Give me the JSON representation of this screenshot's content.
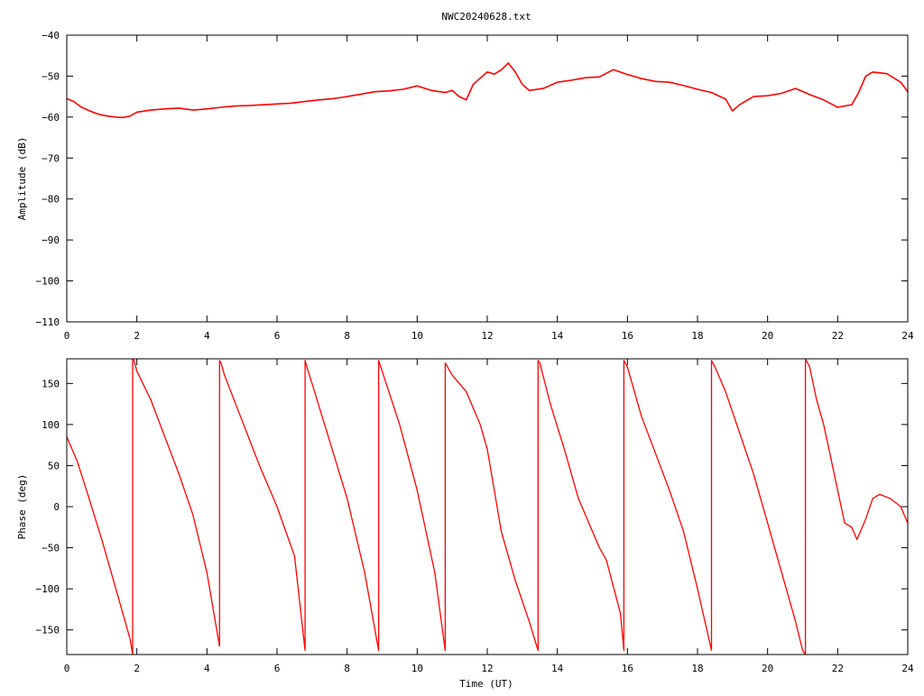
{
  "figure": {
    "title": "NWC20240628.txt",
    "xlabel": "Time (UT)",
    "series_color": "#ff0000"
  },
  "chart_data": [
    {
      "type": "line",
      "title": "NWC20240628.txt",
      "xlabel": "",
      "ylabel": "Amplitude (dB)",
      "xlim": [
        0,
        24
      ],
      "ylim": [
        -110,
        -40
      ],
      "xticks": [
        "0",
        "2",
        "4",
        "6",
        "8",
        "10",
        "12",
        "14",
        "16",
        "18",
        "20",
        "22",
        "24"
      ],
      "yticks": [
        "−40",
        "−50",
        "−60",
        "−70",
        "−80",
        "−90",
        "−100",
        "−110"
      ],
      "grid": false,
      "legend": "none",
      "series": [
        {
          "color": "#ff0000",
          "x": [
            0,
            0.2,
            0.4,
            0.6,
            0.8,
            1.0,
            1.2,
            1.4,
            1.6,
            1.8,
            2.0,
            2.4,
            2.8,
            3.2,
            3.6,
            4.0,
            4.4,
            4.8,
            5.2,
            5.6,
            6.0,
            6.4,
            6.8,
            7.2,
            7.6,
            8.0,
            8.4,
            8.8,
            9.2,
            9.6,
            10.0,
            10.4,
            10.8,
            11.0,
            11.2,
            11.4,
            11.6,
            11.8,
            12.0,
            12.2,
            12.4,
            12.6,
            12.8,
            13.0,
            13.2,
            13.6,
            14.0,
            14.4,
            14.8,
            15.2,
            15.6,
            16.0,
            16.4,
            16.8,
            17.2,
            17.6,
            18.0,
            18.4,
            18.8,
            19.0,
            19.2,
            19.6,
            20.0,
            20.4,
            20.8,
            21.2,
            21.6,
            22.0,
            22.4,
            22.6,
            22.8,
            23.0,
            23.4,
            23.8,
            24.0
          ],
          "y": [
            -55.5,
            -56.2,
            -57.5,
            -58.3,
            -59.0,
            -59.5,
            -59.8,
            -60.0,
            -60.1,
            -59.8,
            -58.8,
            -58.3,
            -58.0,
            -57.8,
            -58.3,
            -58.0,
            -57.6,
            -57.3,
            -57.2,
            -57.0,
            -56.8,
            -56.6,
            -56.2,
            -55.8,
            -55.5,
            -55.0,
            -54.4,
            -53.8,
            -53.6,
            -53.2,
            -52.4,
            -53.5,
            -54.0,
            -53.5,
            -55.0,
            -55.8,
            -52.0,
            -50.5,
            -49.0,
            -49.5,
            -48.5,
            -46.8,
            -49.0,
            -52.0,
            -53.5,
            -53.0,
            -51.5,
            -51.0,
            -50.4,
            -50.2,
            -48.4,
            -49.6,
            -50.6,
            -51.3,
            -51.5,
            -52.3,
            -53.2,
            -54.0,
            -55.6,
            -58.5,
            -57.0,
            -55.0,
            -54.8,
            -54.2,
            -53.0,
            -54.5,
            -55.8,
            -57.6,
            -57.0,
            -54.0,
            -50.0,
            -49.0,
            -49.4,
            -51.5,
            -53.8
          ]
        }
      ]
    },
    {
      "type": "line",
      "title": "",
      "xlabel": "Time (UT)",
      "ylabel": "Phase (deg)",
      "xlim": [
        0,
        24
      ],
      "ylim": [
        -180,
        180
      ],
      "xticks": [
        "0",
        "2",
        "4",
        "6",
        "8",
        "10",
        "12",
        "14",
        "16",
        "18",
        "20",
        "22",
        "24"
      ],
      "yticks": [
        "150",
        "100",
        "50",
        "0",
        "−50",
        "−100",
        "−150"
      ],
      "grid": false,
      "legend": "none",
      "series": [
        {
          "color": "#ff0000",
          "x": [
            0,
            0.3,
            0.6,
            1.0,
            1.4,
            1.8,
            1.88,
            1.88,
            1.92,
            2.0,
            2.4,
            2.8,
            3.2,
            3.6,
            4.0,
            4.36,
            4.36,
            4.4,
            4.5,
            5.0,
            5.5,
            6.0,
            6.5,
            6.8,
            6.8,
            6.85,
            7.0,
            7.5,
            8.0,
            8.5,
            8.9,
            8.9,
            9.0,
            9.5,
            10.0,
            10.5,
            10.8,
            10.8,
            11.0,
            11.4,
            11.6,
            11.8,
            12.0,
            12.2,
            12.4,
            12.8,
            13.2,
            13.45,
            13.45,
            13.5,
            13.8,
            14.2,
            14.6,
            15.0,
            15.2,
            15.4,
            15.8,
            15.9,
            15.9,
            16.0,
            16.4,
            16.8,
            17.2,
            17.6,
            18.0,
            18.4,
            18.4,
            18.5,
            18.8,
            19.2,
            19.6,
            20.0,
            20.4,
            20.8,
            21.0,
            21.08,
            21.08,
            21.2,
            21.4,
            21.6,
            21.8,
            22.0,
            22.2,
            22.4,
            22.55,
            22.8,
            23.0,
            23.2,
            23.5,
            23.8,
            24.0
          ],
          "y": [
            85,
            55,
            15,
            -40,
            -100,
            -160,
            -180,
            180,
            178,
            165,
            130,
            85,
            40,
            -10,
            -80,
            -170,
            178,
            175,
            160,
            105,
            50,
            0,
            -60,
            -175,
            178,
            170,
            150,
            80,
            10,
            -80,
            -175,
            178,
            165,
            100,
            20,
            -80,
            -175,
            175,
            160,
            140,
            120,
            100,
            70,
            20,
            -30,
            -90,
            -140,
            -175,
            178,
            175,
            125,
            70,
            10,
            -30,
            -50,
            -65,
            -130,
            -175,
            178,
            170,
            110,
            65,
            20,
            -30,
            -100,
            -175,
            178,
            170,
            140,
            90,
            40,
            -20,
            -80,
            -140,
            -175,
            -180,
            180,
            170,
            130,
            100,
            60,
            20,
            -20,
            -25,
            -40,
            -15,
            10,
            15,
            10,
            0,
            -20
          ]
        }
      ]
    }
  ]
}
